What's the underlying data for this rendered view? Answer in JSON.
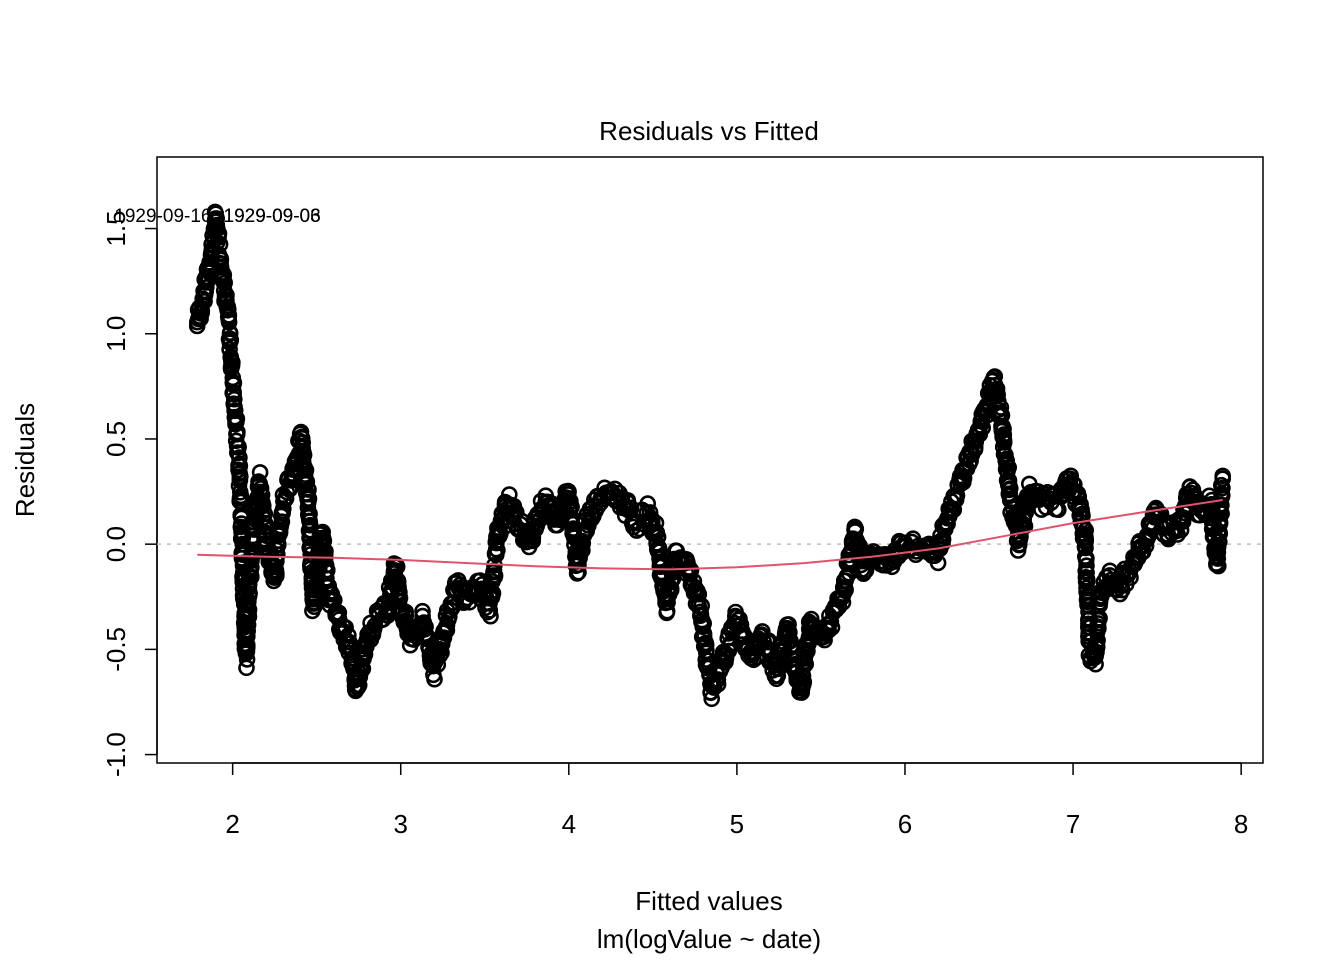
{
  "chart_data": {
    "type": "scatter",
    "title": "Residuals vs Fitted",
    "xlabel": "Fitted values",
    "xlabel_sub": "lm(logValue ~ date)",
    "ylabel": "Residuals",
    "xlim": [
      1.55,
      8.13
    ],
    "ylim": [
      -1.04,
      1.84
    ],
    "x_ticks": [
      2,
      3,
      4,
      5,
      6,
      7,
      8
    ],
    "y_ticks": [
      -1.0,
      -0.5,
      0.0,
      0.5,
      1.0,
      1.5
    ],
    "x_tick_labels": [
      "2",
      "3",
      "4",
      "5",
      "6",
      "7",
      "8"
    ],
    "y_tick_labels": [
      "-1.0",
      "-0.5",
      "0.0",
      "0.5",
      "1.0",
      "1.5"
    ],
    "grid": false,
    "reference_line_y": 0,
    "point_labels": [
      {
        "text": "1929-09-16",
        "x": 1.91,
        "y": 1.56
      },
      {
        "text": "1929-09-06",
        "x": 1.91,
        "y": 1.56
      },
      {
        "text": "1929-09-03",
        "x": 1.91,
        "y": 1.56
      }
    ],
    "residual_trace": [
      [
        1.79,
        1.05
      ],
      [
        1.82,
        1.15
      ],
      [
        1.86,
        1.3
      ],
      [
        1.9,
        1.55
      ],
      [
        1.94,
        1.3
      ],
      [
        1.97,
        1.1
      ],
      [
        2.0,
        0.8
      ],
      [
        2.04,
        0.35
      ],
      [
        2.06,
        -0.05
      ],
      [
        2.08,
        -0.55
      ],
      [
        2.1,
        -0.2
      ],
      [
        2.13,
        0.1
      ],
      [
        2.16,
        0.3
      ],
      [
        2.2,
        0.0
      ],
      [
        2.25,
        -0.15
      ],
      [
        2.3,
        0.2
      ],
      [
        2.36,
        0.35
      ],
      [
        2.41,
        0.5
      ],
      [
        2.45,
        0.2
      ],
      [
        2.48,
        -0.3
      ],
      [
        2.53,
        0.05
      ],
      [
        2.58,
        -0.25
      ],
      [
        2.63,
        -0.35
      ],
      [
        2.7,
        -0.5
      ],
      [
        2.74,
        -0.7
      ],
      [
        2.8,
        -0.45
      ],
      [
        2.86,
        -0.35
      ],
      [
        2.92,
        -0.3
      ],
      [
        2.97,
        -0.1
      ],
      [
        3.0,
        -0.3
      ],
      [
        3.06,
        -0.45
      ],
      [
        3.13,
        -0.35
      ],
      [
        3.2,
        -0.6
      ],
      [
        3.26,
        -0.4
      ],
      [
        3.33,
        -0.2
      ],
      [
        3.4,
        -0.25
      ],
      [
        3.46,
        -0.2
      ],
      [
        3.53,
        -0.3
      ],
      [
        3.58,
        0.05
      ],
      [
        3.64,
        0.2
      ],
      [
        3.7,
        0.1
      ],
      [
        3.76,
        0.0
      ],
      [
        3.82,
        0.15
      ],
      [
        3.88,
        0.2
      ],
      [
        3.94,
        0.1
      ],
      [
        4.0,
        0.25
      ],
      [
        4.05,
        -0.1
      ],
      [
        4.1,
        0.1
      ],
      [
        4.17,
        0.2
      ],
      [
        4.25,
        0.25
      ],
      [
        4.32,
        0.2
      ],
      [
        4.4,
        0.1
      ],
      [
        4.47,
        0.15
      ],
      [
        4.52,
        0.05
      ],
      [
        4.58,
        -0.3
      ],
      [
        4.64,
        -0.05
      ],
      [
        4.7,
        -0.1
      ],
      [
        4.78,
        -0.3
      ],
      [
        4.85,
        -0.7
      ],
      [
        4.92,
        -0.55
      ],
      [
        5.0,
        -0.35
      ],
      [
        5.08,
        -0.55
      ],
      [
        5.16,
        -0.45
      ],
      [
        5.24,
        -0.6
      ],
      [
        5.3,
        -0.4
      ],
      [
        5.38,
        -0.72
      ],
      [
        5.44,
        -0.35
      ],
      [
        5.5,
        -0.45
      ],
      [
        5.57,
        -0.35
      ],
      [
        5.63,
        -0.25
      ],
      [
        5.7,
        0.05
      ],
      [
        5.75,
        -0.1
      ],
      [
        5.82,
        -0.05
      ],
      [
        5.9,
        -0.1
      ],
      [
        5.98,
        0.0
      ],
      [
        6.06,
        -0.02
      ],
      [
        6.14,
        0.0
      ],
      [
        6.2,
        -0.05
      ],
      [
        6.26,
        0.15
      ],
      [
        6.33,
        0.3
      ],
      [
        6.4,
        0.45
      ],
      [
        6.47,
        0.6
      ],
      [
        6.53,
        0.78
      ],
      [
        6.58,
        0.55
      ],
      [
        6.63,
        0.2
      ],
      [
        6.68,
        0.0
      ],
      [
        6.74,
        0.25
      ],
      [
        6.8,
        0.2
      ],
      [
        6.86,
        0.22
      ],
      [
        6.92,
        0.2
      ],
      [
        6.98,
        0.3
      ],
      [
        7.03,
        0.2
      ],
      [
        7.07,
        0.05
      ],
      [
        7.1,
        -0.5
      ],
      [
        7.13,
        -0.55
      ],
      [
        7.17,
        -0.2
      ],
      [
        7.22,
        -0.15
      ],
      [
        7.28,
        -0.2
      ],
      [
        7.35,
        -0.1
      ],
      [
        7.42,
        0.0
      ],
      [
        7.5,
        0.15
      ],
      [
        7.57,
        0.05
      ],
      [
        7.64,
        0.1
      ],
      [
        7.7,
        0.25
      ],
      [
        7.76,
        0.15
      ],
      [
        7.82,
        0.2
      ],
      [
        7.86,
        -0.1
      ],
      [
        7.89,
        0.3
      ]
    ],
    "smoother": {
      "x": [
        1.79,
        2.2,
        2.6,
        3.0,
        3.4,
        3.8,
        4.2,
        4.6,
        5.0,
        5.4,
        5.8,
        6.2,
        6.6,
        7.0,
        7.4,
        7.89
      ],
      "y": [
        -0.05,
        -0.06,
        -0.065,
        -0.075,
        -0.09,
        -0.105,
        -0.115,
        -0.12,
        -0.11,
        -0.09,
        -0.06,
        -0.02,
        0.04,
        0.1,
        0.15,
        0.21
      ],
      "color": "#DF536B"
    },
    "colors": {
      "points": "#000000",
      "smoother": "#DF536B",
      "reference_line": "#BEBEBE"
    }
  }
}
